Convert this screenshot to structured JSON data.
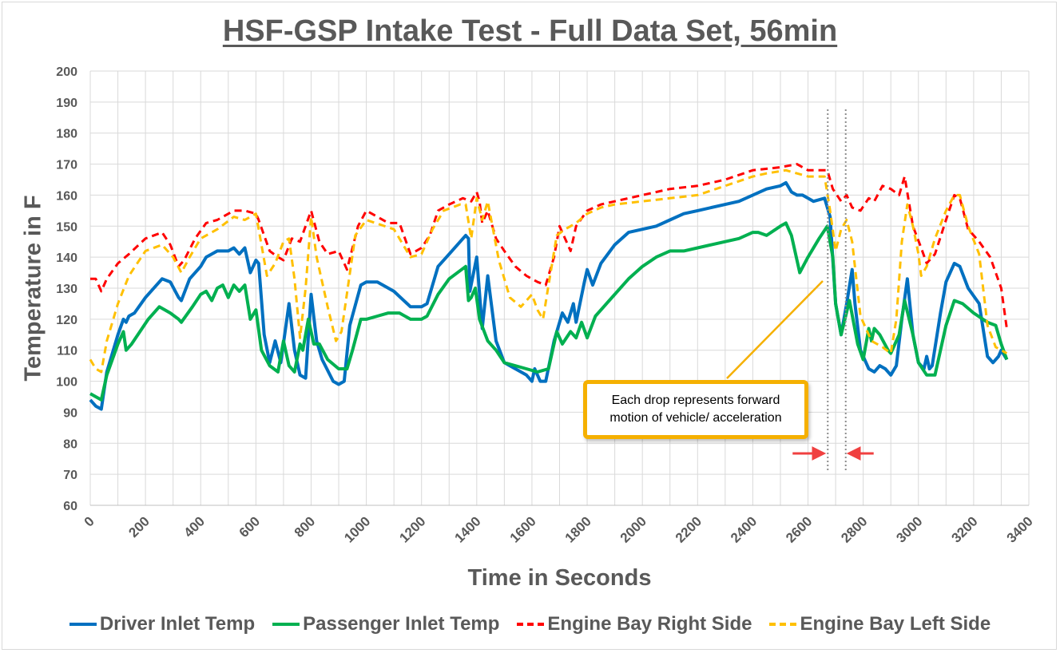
{
  "chart_data": {
    "type": "line",
    "title": "HSF-GSP Intake Test - Full Data Set, 56min",
    "xlabel": "Time in Seconds",
    "ylabel": "Temperature in F",
    "xlim": [
      0,
      3400
    ],
    "ylim": [
      60,
      200
    ],
    "xticks": [
      0,
      200,
      400,
      600,
      800,
      1000,
      1200,
      1400,
      1600,
      1800,
      2000,
      2200,
      2400,
      2600,
      2800,
      3000,
      3200,
      3400
    ],
    "yticks": [
      60,
      70,
      80,
      90,
      100,
      110,
      120,
      130,
      140,
      150,
      160,
      170,
      180,
      190,
      200
    ],
    "grid": true,
    "grid_x_step": 100,
    "legend_placement": "bottom",
    "annotation": {
      "text": "Each drop represents forward motion of vehicle/ acceleration",
      "marker_times": [
        2660,
        2725
      ]
    },
    "series": [
      {
        "name": "Driver Inlet Temp",
        "color": "#0070C0",
        "dash": "solid",
        "x": [
          0,
          20,
          40,
          60,
          100,
          120,
          130,
          140,
          160,
          200,
          260,
          290,
          320,
          330,
          360,
          400,
          420,
          440,
          460,
          480,
          500,
          520,
          540,
          560,
          580,
          600,
          610,
          630,
          650,
          670,
          690,
          720,
          740,
          760,
          780,
          800,
          820,
          840,
          880,
          900,
          920,
          940,
          980,
          1000,
          1040,
          1100,
          1160,
          1200,
          1220,
          1260,
          1300,
          1360,
          1370,
          1375,
          1400,
          1420,
          1440,
          1470,
          1500,
          1540,
          1580,
          1600,
          1610,
          1630,
          1650,
          1680,
          1710,
          1730,
          1750,
          1760,
          1790,
          1800,
          1820,
          1850,
          1900,
          1950,
          2000,
          2050,
          2100,
          2150,
          2200,
          2300,
          2350,
          2400,
          2450,
          2500,
          2520,
          2540,
          2560,
          2580,
          2600,
          2620,
          2660,
          2680,
          2700,
          2720,
          2740,
          2760,
          2770,
          2790,
          2820,
          2840,
          2860,
          2880,
          2900,
          2920,
          2940,
          2960,
          2980,
          3000,
          3020,
          3030,
          3040,
          3050,
          3080,
          3100,
          3130,
          3150,
          3180,
          3220,
          3250,
          3270,
          3290,
          3300,
          3320
        ],
        "y": [
          94,
          92,
          91,
          103,
          115,
          120,
          119,
          121,
          122,
          127,
          133,
          132,
          127,
          126,
          133,
          137,
          140,
          141,
          142,
          142,
          142,
          143,
          141,
          143,
          135,
          139,
          138,
          115,
          106,
          113,
          106,
          125,
          110,
          102,
          101,
          128,
          113,
          107,
          100,
          99,
          100,
          118,
          131,
          132,
          132,
          129,
          124,
          124,
          125,
          137,
          141,
          147,
          146,
          129,
          140,
          117,
          134,
          113,
          106,
          104,
          102,
          100,
          104,
          100,
          100,
          113,
          122,
          119,
          125,
          119,
          132,
          136,
          131,
          138,
          144,
          148,
          149,
          150,
          152,
          154,
          155,
          157,
          158,
          160,
          162,
          163,
          164,
          161,
          160,
          160,
          159,
          158,
          159,
          153,
          125,
          115,
          125,
          136,
          125,
          110,
          104,
          103,
          105,
          104,
          102,
          105,
          120,
          133,
          115,
          106,
          104,
          108,
          104,
          105,
          122,
          132,
          138,
          137,
          130,
          125,
          108,
          106,
          108,
          110,
          107
        ]
      },
      {
        "name": "Passenger Inlet Temp",
        "color": "#00B050",
        "dash": "solid",
        "x": [
          0,
          20,
          40,
          60,
          100,
          120,
          130,
          150,
          180,
          210,
          250,
          290,
          320,
          330,
          370,
          400,
          420,
          440,
          460,
          480,
          500,
          520,
          540,
          560,
          580,
          600,
          620,
          650,
          680,
          700,
          720,
          740,
          760,
          770,
          790,
          810,
          830,
          860,
          900,
          930,
          950,
          980,
          1000,
          1040,
          1080,
          1120,
          1160,
          1200,
          1220,
          1260,
          1300,
          1360,
          1370,
          1380,
          1395,
          1410,
          1440,
          1470,
          1500,
          1580,
          1620,
          1660,
          1690,
          1710,
          1740,
          1760,
          1780,
          1800,
          1830,
          1880,
          1950,
          2000,
          2050,
          2100,
          2150,
          2200,
          2250,
          2300,
          2350,
          2400,
          2420,
          2450,
          2500,
          2520,
          2540,
          2570,
          2600,
          2640,
          2670,
          2690,
          2700,
          2720,
          2750,
          2780,
          2800,
          2820,
          2830,
          2840,
          2860,
          2890,
          2900,
          2930,
          2950,
          2980,
          3000,
          3030,
          3060,
          3100,
          3130,
          3160,
          3200,
          3250,
          3280,
          3300,
          3320
        ],
        "y": [
          96,
          95,
          94,
          102,
          112,
          116,
          110,
          112,
          116,
          120,
          124,
          122,
          120,
          119,
          124,
          128,
          129,
          126,
          130,
          131,
          127,
          131,
          129,
          131,
          120,
          123,
          110,
          105,
          103,
          113,
          105,
          103,
          112,
          110,
          120,
          112,
          112,
          107,
          104,
          104,
          110,
          120,
          120,
          121,
          122,
          122,
          120,
          120,
          121,
          128,
          133,
          137,
          126,
          127,
          130,
          120,
          113,
          110,
          106,
          104,
          103,
          104,
          116,
          112,
          116,
          114,
          119,
          114,
          121,
          126,
          133,
          137,
          140,
          142,
          142,
          143,
          144,
          145,
          146,
          148,
          148,
          147,
          150,
          151,
          147,
          135,
          140,
          146,
          150,
          140,
          125,
          115,
          126,
          112,
          107,
          117,
          113,
          117,
          115,
          110,
          109,
          115,
          126,
          115,
          106,
          102,
          102,
          118,
          126,
          125,
          122,
          119,
          118,
          112,
          107
        ]
      },
      {
        "name": "Engine Bay Right Side",
        "color": "#FF0000",
        "dash": "dashed",
        "x": [
          0,
          20,
          40,
          60,
          100,
          140,
          200,
          260,
          290,
          320,
          340,
          380,
          420,
          460,
          520,
          560,
          600,
          610,
          650,
          680,
          700,
          730,
          760,
          800,
          830,
          860,
          900,
          930,
          970,
          1000,
          1040,
          1080,
          1120,
          1160,
          1200,
          1230,
          1260,
          1300,
          1350,
          1380,
          1400,
          1410,
          1420,
          1440,
          1470,
          1500,
          1540,
          1580,
          1620,
          1650,
          1680,
          1700,
          1720,
          1740,
          1760,
          1800,
          1850,
          1900,
          2000,
          2100,
          2200,
          2300,
          2400,
          2500,
          2560,
          2600,
          2640,
          2670,
          2690,
          2720,
          2740,
          2760,
          2790,
          2820,
          2840,
          2870,
          2900,
          2930,
          2950,
          2980,
          3010,
          3030,
          3060,
          3100,
          3130,
          3150,
          3180,
          3220,
          3260,
          3300,
          3320
        ],
        "y": [
          133,
          133,
          129,
          133,
          138,
          141,
          146,
          148,
          144,
          137,
          139,
          146,
          151,
          152,
          155,
          155,
          154,
          152,
          142,
          140,
          139,
          146,
          145,
          155,
          145,
          141,
          142,
          136,
          150,
          155,
          153,
          151,
          151,
          141,
          143,
          147,
          155,
          157,
          159,
          158,
          161,
          158,
          151,
          155,
          146,
          142,
          137,
          134,
          132,
          131,
          140,
          150,
          146,
          142,
          150,
          155,
          157,
          158,
          160,
          162,
          163,
          165,
          168,
          169,
          170,
          168,
          168,
          168,
          162,
          158,
          160,
          156,
          155,
          159,
          158,
          163,
          162,
          160,
          166,
          150,
          143,
          138,
          141,
          152,
          160,
          159,
          149,
          145,
          140,
          130,
          117
        ]
      },
      {
        "name": "Engine Bay Left Side",
        "color": "#FFC000",
        "dash": "dashed",
        "x": [
          0,
          20,
          40,
          60,
          100,
          140,
          200,
          260,
          300,
          330,
          360,
          400,
          460,
          520,
          560,
          600,
          620,
          640,
          670,
          700,
          720,
          740,
          760,
          780,
          800,
          820,
          860,
          890,
          910,
          960,
          1000,
          1100,
          1160,
          1200,
          1240,
          1280,
          1340,
          1360,
          1380,
          1400,
          1420,
          1440,
          1480,
          1520,
          1560,
          1600,
          1620,
          1640,
          1660,
          1690,
          1720,
          1760,
          1800,
          1850,
          1900,
          2000,
          2100,
          2200,
          2300,
          2400,
          2450,
          2520,
          2560,
          2600,
          2660,
          2680,
          2700,
          2720,
          2740,
          2760,
          2790,
          2830,
          2870,
          2900,
          2920,
          2940,
          2960,
          2980,
          3000,
          3010,
          3030,
          3060,
          3100,
          3130,
          3150,
          3180,
          3220,
          3250,
          3280,
          3300,
          3320
        ],
        "y": [
          107,
          104,
          103,
          113,
          125,
          134,
          142,
          144,
          140,
          135,
          140,
          146,
          149,
          153,
          152,
          154,
          144,
          134,
          138,
          145,
          146,
          133,
          114,
          130,
          153,
          140,
          124,
          113,
          116,
          147,
          152,
          149,
          140,
          141,
          149,
          155,
          157,
          157,
          146,
          159,
          152,
          158,
          139,
          127,
          124,
          128,
          123,
          120,
          131,
          147,
          149,
          151,
          154,
          156,
          157,
          158,
          159,
          160,
          163,
          166,
          167,
          168,
          167,
          166,
          166,
          155,
          142,
          149,
          152,
          145,
          121,
          113,
          111,
          109,
          120,
          145,
          157,
          150,
          141,
          134,
          137,
          146,
          155,
          160,
          160,
          150,
          141,
          118,
          111,
          110,
          109
        ]
      }
    ]
  }
}
